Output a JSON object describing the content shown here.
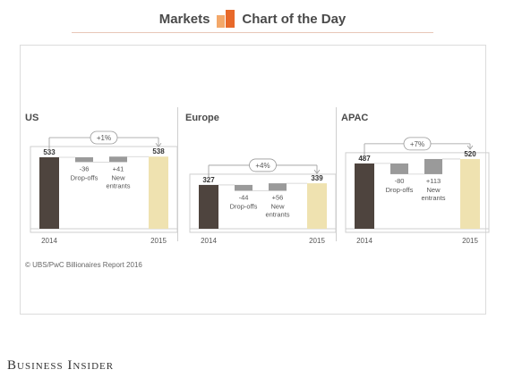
{
  "header": {
    "left": "Markets",
    "right": "Chart of the Day"
  },
  "colors": {
    "start": "#4e443e",
    "end": "#efe2b0",
    "delta": "#9a9a9a",
    "logo_dark": "#e8692a",
    "logo_light": "#f3a86a",
    "arrow": "#9a9a9a"
  },
  "source": "© UBS/PwC Billionaires Report 2016",
  "brand": "Business Insider",
  "chart_data": [
    {
      "type": "bar",
      "title": "US",
      "start": {
        "label": "2014",
        "value": 533
      },
      "end": {
        "label": "2015",
        "value": 538
      },
      "change": "+1%",
      "steps": [
        {
          "name": "Drop-offs",
          "value": -36,
          "value_label": "-36"
        },
        {
          "name": "New entrants",
          "value": 41,
          "value_label": "+41"
        }
      ]
    },
    {
      "type": "bar",
      "title": "Europe",
      "start": {
        "label": "2014",
        "value": 327
      },
      "end": {
        "label": "2015",
        "value": 339
      },
      "change": "+4%",
      "steps": [
        {
          "name": "Drop-offs",
          "value": -44,
          "value_label": "-44"
        },
        {
          "name": "New entrants",
          "value": 56,
          "value_label": "+56"
        }
      ]
    },
    {
      "type": "bar",
      "title": "APAC",
      "start": {
        "label": "2014",
        "value": 487
      },
      "end": {
        "label": "2015",
        "value": 520
      },
      "change": "+7%",
      "steps": [
        {
          "name": "Drop-offs",
          "value": -80,
          "value_label": "-80"
        },
        {
          "name": "New entrants",
          "value": 113,
          "value_label": "+113"
        }
      ]
    }
  ]
}
